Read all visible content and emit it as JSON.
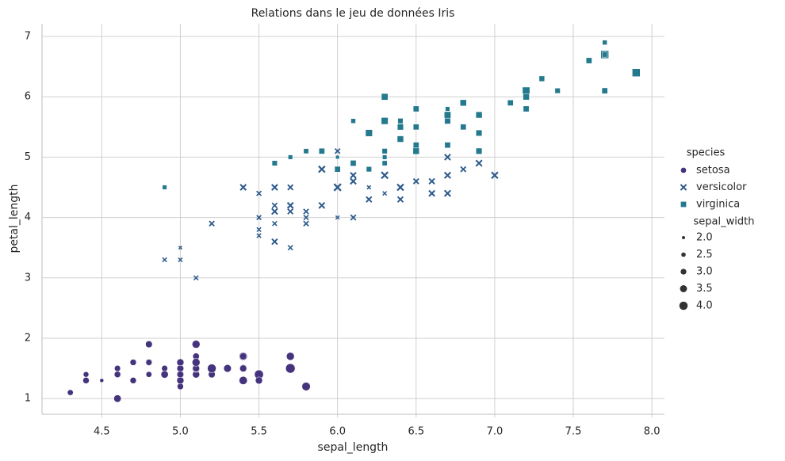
{
  "chart_data": {
    "type": "scatter",
    "title": "Relations dans le jeu de données Iris",
    "x_label": "sepal_length",
    "y_label": "petal_length",
    "xlim": [
      4.12,
      8.08
    ],
    "ylim": [
      0.74,
      7.21
    ],
    "xticks": [
      {
        "value": 4.5,
        "label": "4.5"
      },
      {
        "value": 5.0,
        "label": "5.0"
      },
      {
        "value": 5.5,
        "label": "5.5"
      },
      {
        "value": 6.0,
        "label": "6.0"
      },
      {
        "value": 6.5,
        "label": "6.5"
      },
      {
        "value": 7.0,
        "label": "7.0"
      },
      {
        "value": 7.5,
        "label": "7.5"
      },
      {
        "value": 8.0,
        "label": "8.0"
      }
    ],
    "yticks": [
      1,
      2,
      3,
      4,
      5,
      6,
      7
    ],
    "grid": true,
    "legend": "right",
    "hue_title": "species",
    "size_legend": {
      "title": "sepal_width",
      "values": [
        {
          "value": 2.0,
          "label": "2.0"
        },
        {
          "value": 2.5,
          "label": "2.5"
        },
        {
          "value": 3.0,
          "label": "3.0"
        },
        {
          "value": 3.5,
          "label": "3.5"
        },
        {
          "value": 4.0,
          "label": "4.0"
        }
      ]
    },
    "series": [
      {
        "name": "setosa",
        "color": "#45337d",
        "marker": "circle",
        "x": [
          5.1,
          4.9,
          4.7,
          4.6,
          5.0,
          5.4,
          4.6,
          5.0,
          4.4,
          4.9,
          5.4,
          4.8,
          4.8,
          4.3,
          5.8,
          5.7,
          5.4,
          5.1,
          5.7,
          5.1,
          5.4,
          5.1,
          4.6,
          5.1,
          4.8,
          5.0,
          5.0,
          5.2,
          5.2,
          4.7,
          4.8,
          5.4,
          5.2,
          5.5,
          4.9,
          5.0,
          5.5,
          4.9,
          4.4,
          5.1,
          5.0,
          4.5,
          4.4,
          5.0,
          5.1,
          4.8,
          5.1,
          4.6,
          5.3,
          5.0
        ],
        "values": [
          1.4,
          1.4,
          1.3,
          1.5,
          1.4,
          1.7,
          1.4,
          1.5,
          1.4,
          1.5,
          1.5,
          1.6,
          1.4,
          1.1,
          1.2,
          1.5,
          1.3,
          1.4,
          1.7,
          1.5,
          1.7,
          1.5,
          1.0,
          1.7,
          1.9,
          1.6,
          1.6,
          1.5,
          1.4,
          1.6,
          1.6,
          1.5,
          1.5,
          1.4,
          1.5,
          1.2,
          1.3,
          1.4,
          1.3,
          1.5,
          1.3,
          1.3,
          1.3,
          1.6,
          1.9,
          1.4,
          1.6,
          1.4,
          1.5,
          1.4
        ],
        "sizes": [
          3.5,
          3.0,
          3.2,
          3.1,
          3.6,
          3.9,
          3.4,
          3.4,
          2.9,
          3.1,
          3.7,
          3.4,
          3.0,
          3.0,
          4.0,
          4.4,
          3.9,
          3.5,
          3.8,
          3.8,
          3.4,
          3.7,
          3.6,
          3.3,
          3.4,
          3.0,
          3.4,
          3.5,
          3.4,
          3.2,
          3.1,
          3.4,
          4.1,
          4.2,
          3.1,
          3.2,
          3.5,
          3.6,
          3.0,
          3.4,
          3.5,
          2.3,
          3.2,
          3.5,
          3.8,
          3.0,
          3.8,
          3.2,
          3.7,
          3.3
        ]
      },
      {
        "name": "versicolor",
        "color": "#2d5a8c",
        "marker": "x",
        "x": [
          7.0,
          6.4,
          6.9,
          5.5,
          6.5,
          5.7,
          6.3,
          4.9,
          6.6,
          5.2,
          5.0,
          5.9,
          6.0,
          6.1,
          5.6,
          6.7,
          5.6,
          5.8,
          6.2,
          5.6,
          5.9,
          6.1,
          6.3,
          6.1,
          6.4,
          6.6,
          6.8,
          6.7,
          6.0,
          5.7,
          5.5,
          5.5,
          5.8,
          6.0,
          5.4,
          6.0,
          6.7,
          6.3,
          5.6,
          5.5,
          5.5,
          6.1,
          5.8,
          5.0,
          5.6,
          5.7,
          5.7,
          6.2,
          5.1,
          5.7
        ],
        "values": [
          4.7,
          4.5,
          4.9,
          4.0,
          4.6,
          4.5,
          4.7,
          3.3,
          4.6,
          3.9,
          3.5,
          4.2,
          4.0,
          4.7,
          3.6,
          4.4,
          4.5,
          4.1,
          4.5,
          3.9,
          4.8,
          4.0,
          4.9,
          4.7,
          4.3,
          4.4,
          4.8,
          5.0,
          4.5,
          3.5,
          3.8,
          3.7,
          3.9,
          5.1,
          4.5,
          4.5,
          4.7,
          4.4,
          4.1,
          4.0,
          4.4,
          4.6,
          4.0,
          3.3,
          4.2,
          4.2,
          4.2,
          4.3,
          3.0,
          4.1
        ],
        "sizes": [
          3.2,
          3.2,
          3.1,
          2.3,
          2.8,
          2.8,
          3.3,
          2.4,
          2.9,
          2.7,
          2.0,
          3.0,
          2.2,
          2.9,
          2.9,
          3.1,
          3.0,
          2.7,
          2.2,
          2.5,
          3.2,
          2.8,
          2.5,
          2.8,
          2.9,
          3.0,
          2.8,
          3.0,
          2.9,
          2.6,
          2.4,
          2.4,
          2.7,
          2.7,
          3.0,
          3.4,
          3.1,
          2.3,
          3.0,
          2.5,
          2.6,
          3.0,
          2.6,
          2.3,
          2.7,
          3.0,
          2.9,
          2.9,
          2.5,
          2.8
        ]
      },
      {
        "name": "virginica",
        "color": "#24798e",
        "marker": "square",
        "x": [
          6.3,
          5.8,
          7.1,
          6.3,
          6.5,
          7.6,
          4.9,
          7.3,
          6.7,
          7.2,
          6.5,
          6.4,
          6.8,
          5.7,
          5.8,
          6.4,
          6.5,
          7.7,
          7.7,
          6.0,
          6.9,
          5.6,
          7.7,
          6.3,
          6.7,
          7.2,
          6.2,
          6.1,
          6.4,
          7.2,
          7.4,
          7.9,
          6.4,
          6.3,
          6.1,
          7.7,
          6.3,
          6.4,
          6.0,
          6.9,
          6.7,
          6.9,
          5.8,
          6.8,
          6.7,
          6.7,
          6.3,
          6.5,
          6.2,
          5.9
        ],
        "values": [
          6.0,
          5.1,
          5.9,
          5.6,
          5.8,
          6.6,
          4.5,
          6.3,
          5.8,
          6.1,
          5.1,
          5.3,
          5.5,
          5.0,
          5.1,
          5.3,
          5.5,
          6.7,
          6.9,
          5.0,
          5.7,
          4.9,
          6.7,
          4.9,
          5.7,
          6.0,
          4.8,
          4.9,
          5.6,
          5.8,
          6.1,
          6.4,
          5.6,
          5.1,
          5.6,
          6.1,
          5.6,
          5.5,
          4.8,
          5.4,
          5.6,
          5.1,
          5.1,
          5.9,
          5.7,
          5.2,
          5.0,
          5.2,
          5.4,
          5.1
        ],
        "sizes": [
          3.3,
          2.7,
          3.0,
          2.9,
          3.0,
          3.0,
          2.5,
          2.9,
          2.5,
          3.6,
          3.2,
          2.7,
          3.0,
          2.5,
          2.8,
          3.2,
          3.0,
          3.8,
          2.6,
          2.2,
          3.2,
          2.8,
          2.8,
          2.7,
          3.3,
          3.2,
          2.8,
          3.0,
          2.8,
          3.0,
          2.8,
          3.8,
          2.8,
          2.8,
          2.6,
          3.0,
          3.4,
          3.1,
          3.0,
          3.1,
          3.1,
          3.1,
          2.7,
          3.2,
          3.3,
          3.0,
          2.5,
          3.0,
          3.4,
          3.0
        ]
      }
    ]
  }
}
